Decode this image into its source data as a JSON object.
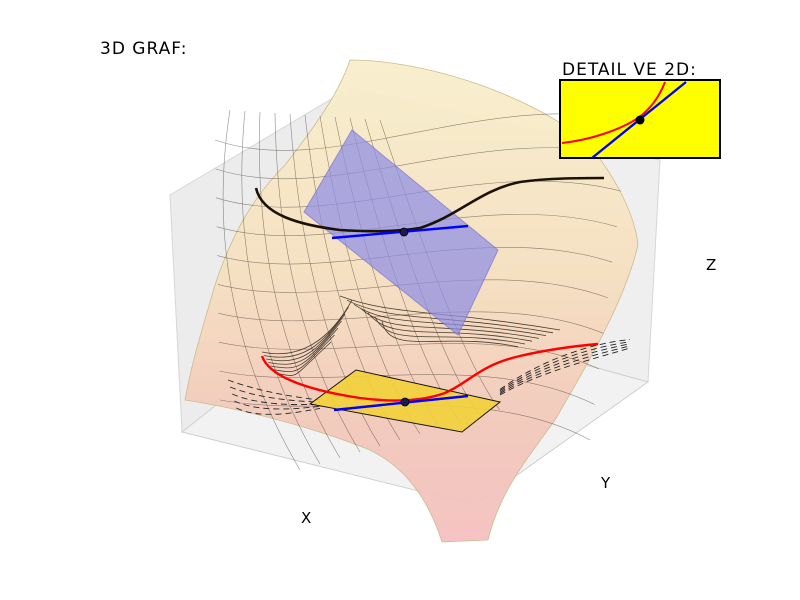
{
  "figure": {
    "title": "3D GRAF:",
    "inset_title": "DETAIL VE 2D:",
    "axis_x": "X",
    "axis_y": "Y",
    "axis_z": "Z"
  },
  "colors": {
    "surface_top": "#f7ecc6",
    "surface_bottom": "#f4c9c4",
    "pane": "#e9e9e9",
    "tangent_plane": "#8f8fe6",
    "contour_patch": "#f4d23a",
    "level_curve": "#ff0000",
    "surface_curve": "#1a1206",
    "tangent_line": "#0000ff",
    "inset_background": "#ffff00"
  }
}
